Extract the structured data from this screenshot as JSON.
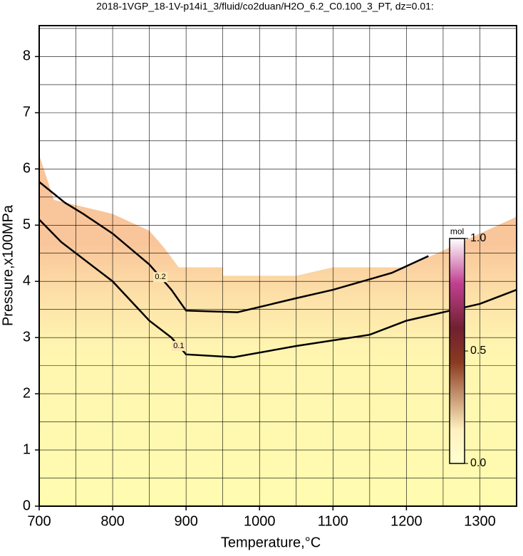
{
  "chart_data": {
    "type": "contour",
    "title": "2018-1VGP_18-1V-p14i1_3/fluid/co2duan/H2O_6.2_C0.100_3_PT, dz=0.01:",
    "x_label": "Temperature,°C",
    "y_label": "Pressure,x100MPa",
    "xlim": [
      700,
      1350
    ],
    "ylim": [
      0,
      8.55
    ],
    "xticks": [
      700,
      800,
      900,
      1000,
      1100,
      1200,
      1300
    ],
    "yticks": [
      0,
      1,
      2,
      3,
      4,
      5,
      6,
      7,
      8
    ],
    "xgrid": [
      750,
      800,
      850,
      900,
      950,
      1000,
      1050,
      1100,
      1150,
      1200,
      1250,
      1300
    ],
    "ygrid": [
      0.5,
      1,
      1.5,
      2,
      2.5,
      3,
      3.5,
      4,
      4.5,
      5,
      5.5,
      6,
      6.5,
      7,
      7.5,
      8,
      8.5
    ],
    "domain": {
      "x": [
        700,
        720,
        800,
        850,
        870,
        890,
        950,
        950,
        1050,
        1100,
        1200,
        1300,
        1350,
        1350,
        700
      ],
      "y": [
        6.25,
        5.45,
        5.2,
        4.9,
        4.6,
        4.25,
        4.25,
        4.1,
        4.1,
        4.25,
        4.25,
        4.85,
        5.15,
        0,
        0
      ]
    },
    "contours": [
      {
        "level": 0.1,
        "color": "#000000",
        "x": [
          700,
          730,
          800,
          850,
          880,
          900,
          965,
          1050,
          1150,
          1200,
          1300,
          1350
        ],
        "y": [
          5.1,
          4.7,
          4.0,
          3.3,
          3.0,
          2.7,
          2.65,
          2.85,
          3.05,
          3.3,
          3.6,
          3.85
        ]
      },
      {
        "level": 0.2,
        "color": "#000000",
        "x": [
          700,
          735,
          760,
          800,
          850,
          880,
          900,
          970,
          1050,
          1100,
          1180,
          1230
        ],
        "y": [
          5.77,
          5.4,
          5.2,
          4.85,
          4.3,
          3.85,
          3.48,
          3.45,
          3.7,
          3.85,
          4.15,
          4.45
        ]
      }
    ],
    "colorbar": {
      "label": "mol",
      "lim": [
        0,
        1
      ],
      "ticks": [
        {
          "value": 0,
          "label": "0.0"
        },
        {
          "value": 0.5,
          "label": "0.5"
        },
        {
          "value": 1,
          "label": "1.0"
        }
      ]
    }
  }
}
